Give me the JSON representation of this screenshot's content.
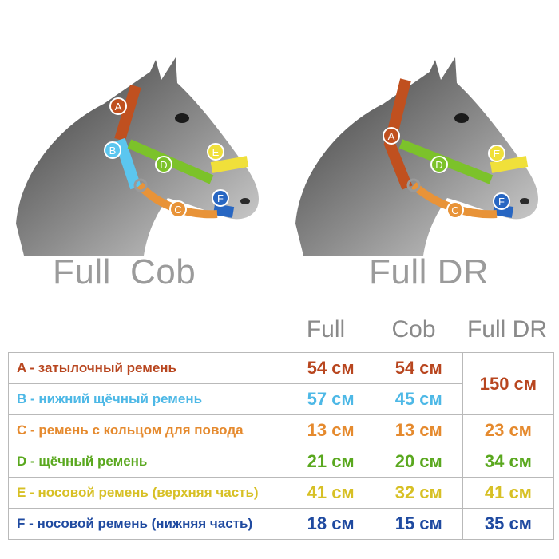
{
  "captions": {
    "left_full": "Full",
    "left_cob": "Cob",
    "right": "Full DR"
  },
  "markers": {
    "A": "A",
    "B": "B",
    "C": "C",
    "D": "D",
    "E": "E",
    "F": "F"
  },
  "columns": {
    "full": "Full",
    "cob": "Cob",
    "full_dr": "Full DR"
  },
  "rows": [
    {
      "label": "A - затылочный ремень",
      "full": "54 см",
      "cob": "54 см",
      "full_dr": "150 см",
      "color": "#b8461f"
    },
    {
      "label": "B - нижний щёчный ремень",
      "full": "57 см",
      "cob": "45 см",
      "full_dr": "",
      "color": "#4db8e6"
    },
    {
      "label": "C - ремень с кольцом для повода",
      "full": "13 см",
      "cob": "13 см",
      "full_dr": "23 см",
      "color": "#e58a2e"
    },
    {
      "label": "D - щёчный ремень",
      "full": "21 см",
      "cob": "20 см",
      "full_dr": "34 см",
      "color": "#5aa81f"
    },
    {
      "label": "E - носовой ремень (верхняя часть)",
      "full": "41 см",
      "cob": "32 см",
      "full_dr": "41 см",
      "color": "#d7c025"
    },
    {
      "label": "F - носовой ремень (нижняя часть)",
      "full": "18 см",
      "cob": "15 см",
      "full_dr": "35 см",
      "color": "#1f4aa0"
    }
  ],
  "strap_colors": {
    "A": "#c0501f",
    "B": "#5bc6ef",
    "C": "#e89338",
    "D": "#7cc22a",
    "E": "#f0e03a",
    "F": "#2766c2"
  }
}
